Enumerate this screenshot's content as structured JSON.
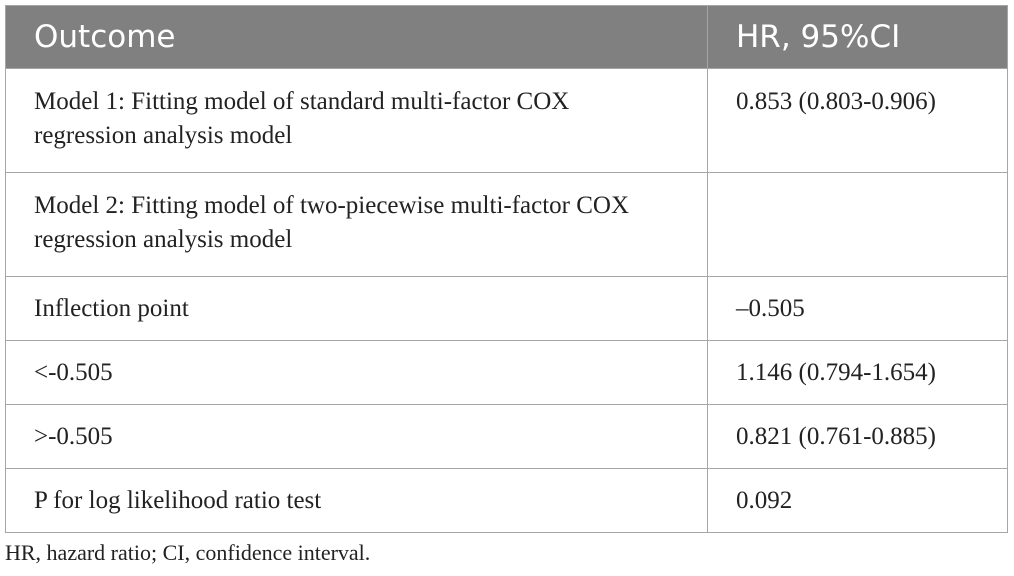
{
  "header": {
    "cells": [
      "Outcome",
      "HR, 95%CI"
    ]
  },
  "table": {
    "rows": [
      [
        "Model 1: Fitting model of standard multi-factor COX regression analysis model",
        "0.853 (0.803-0.906)"
      ],
      [
        "Model 2: Fitting model of two-piecewise multi-factor COX regression analysis model"
      ],
      [
        "Inflection point",
        "–0.505"
      ],
      [
        "<-0.505",
        "1.146 (0.794-1.654)"
      ],
      [
        ">-0.505",
        "0.821 (0.761-0.885)"
      ],
      [
        "P for log likelihood ratio test",
        "0.092"
      ]
    ]
  },
  "footnote": "HR, hazard ratio; CI, confidence interval."
}
